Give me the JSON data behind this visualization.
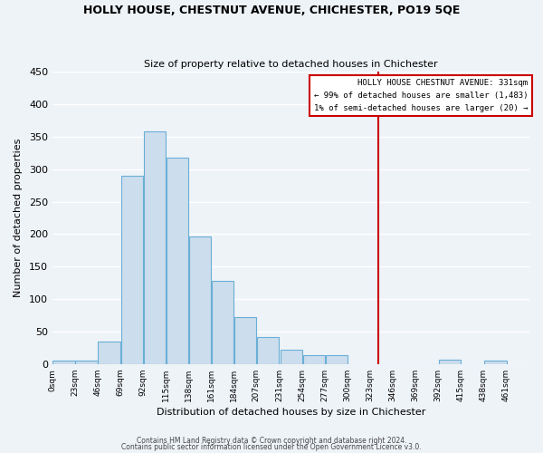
{
  "title": "HOLLY HOUSE, CHESTNUT AVENUE, CHICHESTER, PO19 5QE",
  "subtitle": "Size of property relative to detached houses in Chichester",
  "xlabel": "Distribution of detached houses by size in Chichester",
  "ylabel": "Number of detached properties",
  "bar_left_edges": [
    0,
    23,
    46,
    69,
    92,
    115,
    138,
    161,
    184,
    207,
    231,
    254,
    277,
    300,
    323,
    346,
    369,
    392,
    415,
    438
  ],
  "bar_heights": [
    5,
    5,
    35,
    290,
    358,
    318,
    197,
    128,
    72,
    42,
    22,
    14,
    13,
    0,
    0,
    0,
    0,
    7,
    0,
    5
  ],
  "bin_width": 23,
  "bar_color": "#ccdded",
  "bar_edge_color": "#6aafd6",
  "background_color": "#eef3f8",
  "grid_color": "#ffffff",
  "vline_x": 331,
  "vline_color": "#cc0000",
  "annotation_title": "HOLLY HOUSE CHESTNUT AVENUE: 331sqm",
  "annotation_line1": "← 99% of detached houses are smaller (1,483)",
  "annotation_line2": "1% of semi-detached houses are larger (20) →",
  "annotation_box_color": "#ffffff",
  "annotation_box_edge_color": "#cc0000",
  "tick_labels": [
    "0sqm",
    "23sqm",
    "46sqm",
    "69sqm",
    "92sqm",
    "115sqm",
    "138sqm",
    "161sqm",
    "184sqm",
    "207sqm",
    "231sqm",
    "254sqm",
    "277sqm",
    "300sqm",
    "323sqm",
    "346sqm",
    "369sqm",
    "392sqm",
    "415sqm",
    "438sqm",
    "461sqm"
  ],
  "yticks": [
    0,
    50,
    100,
    150,
    200,
    250,
    300,
    350,
    400,
    450
  ],
  "ylim": [
    0,
    450
  ],
  "xlim": [
    0,
    484
  ],
  "footnote1": "Contains HM Land Registry data © Crown copyright and database right 2024.",
  "footnote2": "Contains public sector information licensed under the Open Government Licence v3.0."
}
